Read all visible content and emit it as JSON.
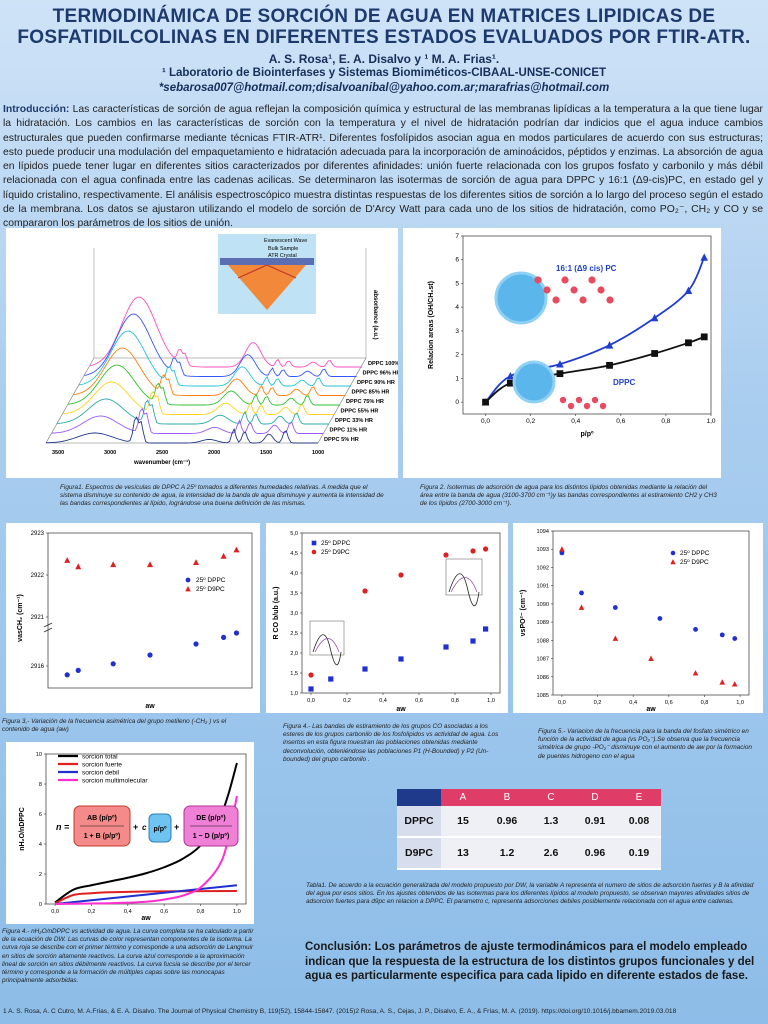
{
  "header": {
    "title_line1": "TERMODINÁMICA DE SORCIÓN DE AGUA EN MATRICES LIPIDICAS DE",
    "title_line2": "FOSFATIDILCOLINAS EN DIFERENTES ESTADOS EVALUADOS POR FTIR-ATR.",
    "authors": "A. S. Rosa¹, E. A. Disalvo y ¹ M. A. Frias¹.",
    "lab": "¹ Laboratorio de Biointerfases y Sistemas Biomiméticos-CIBAAL-UNSE-CONICET",
    "emails": "*sebarosa007@hotmail.com;disalvoanibal@yahoo.com.ar;marafrias@hotmail.com"
  },
  "intro": {
    "label": "Introducción:",
    "text": "Las características de sorción de agua reflejan la composición química y estructural de las membranas lipídicas a la temperatura a la que tiene lugar la hidratación. Los cambios en las características de sorción con la temperatura y el nivel de hidratación podrían dar indicios que el agua induce cambios estructurales que pueden confirmarse mediante técnicas FTIR-ATR¹. Diferentes fosfolípidos asocian agua en modos particulares de acuerdo con sus estructuras; esto puede producir una modulación del empaquetamiento e hidratación adecuada para la incorporación de aminoácidos, péptidos y enzimas. La absorción de agua en lípidos puede tener lugar en diferentes sitios caracterizados por diferentes afinidades: unión fuerte relacionada con los grupos fosfato y carbonilo y más débil relacionada con el agua confinada entre las cadenas acilicas. Se determinaron las isotermas de sorción de agua para DPPC y 16:1 (Δ9-cis)PC, en estado gel y líquido cristalino, respectivamente. El análisis espectroscópico muestra distintas respuestas de los diferentes sitios de sorción a lo largo del proceso según el estado de la membrana. Los datos se ajustaron utilizando el modelo de sorción de D'Arcy Watt para cada uno de los sitios de hidratación, como PO₂⁻, CH₂ y CO y se compararon los parámetros de los sitios de unión."
  },
  "figure1": {
    "inset_labels": [
      "Evanescent Wave",
      "Bulk Sample",
      "ATR Crystal"
    ],
    "ylabel": "absorbance (a.u.)",
    "xlabel": "wavenumber (cm⁻¹)",
    "x_ticks": [
      "3500",
      "3000",
      "2500",
      "2000",
      "1500",
      "1000"
    ],
    "spectra_labels": [
      "DPPC 100% HR",
      "DPPC 96% HR",
      "DPPC 90% HR",
      "DPPC 85% HR",
      "DPPC 75% HR",
      "DPPC 55% HR",
      "DPPC 33% HR",
      "DPPC 11% HR",
      "DPPC 5% HR"
    ],
    "caption": "Figura1. Espectros de vesículas de DPPC A 25º tomados a diferentes humedades relativas. A medida que el sistema disminuye su contenido de agua, la intensidad de la banda de agua disminuye y aumenta la intensidad de las bandas correspondientes al lípido, lográndose una buena definición de las mismas.",
    "colors": [
      "#ff4fbf",
      "#3355ff",
      "#22c3d6",
      "#ff7f0e",
      "#30c030",
      "#ffd21f",
      "#2aa8a8",
      "#9b59ff",
      "#1f3a8a"
    ]
  },
  "chart_data": [
    {
      "id": "figure2",
      "type": "line",
      "xlabel": "p/pº",
      "ylabel": "Relacion areas (OH/CH₂st)",
      "xlim": [
        -0.1,
        1.0
      ],
      "ylim": [
        -0.5,
        7
      ],
      "x_ticks": [
        "0,0",
        "0,2",
        "0,4",
        "0,6",
        "0,8",
        "1,0"
      ],
      "y_ticks": [
        "0",
        "1",
        "2",
        "3",
        "4",
        "5",
        "6",
        "7"
      ],
      "series": [
        {
          "name": "16:1 (Δ9 cis) PC",
          "color": "#1f3ecf",
          "marker": "triangle",
          "x": [
            0.0,
            0.11,
            0.33,
            0.55,
            0.75,
            0.9,
            0.97
          ],
          "y": [
            0.0,
            1.1,
            1.6,
            2.4,
            3.55,
            4.7,
            6.1
          ]
        },
        {
          "name": "DPPC",
          "color": "#111111",
          "marker": "square",
          "x": [
            0.0,
            0.11,
            0.33,
            0.55,
            0.75,
            0.9,
            0.97
          ],
          "y": [
            0.0,
            0.8,
            1.2,
            1.55,
            2.05,
            2.5,
            2.75
          ]
        }
      ],
      "caption": "Figura 2. Isotermas de adsorción de agua para los distintos lípidos obtenidas mediante la relación del área entre la banda de agua (3100-3700 cm⁻¹)y las bandas correspondientes al estiramiento CH2 y CH3 de los lípidos (2700-3000 cm⁻¹)."
    },
    {
      "id": "figure3",
      "type": "scatter",
      "xlabel": "aw",
      "ylabel": "νasCH₂ (cm⁻¹)",
      "y_ticks": [
        "2923",
        "2922",
        "2921",
        "2916"
      ],
      "series": [
        {
          "name": "25º DPPC",
          "color": "#1f2fd0",
          "marker": "circle",
          "x": [
            0.05,
            0.11,
            0.3,
            0.5,
            0.75,
            0.9,
            0.97
          ],
          "y": [
            2915.6,
            2915.8,
            2916.1,
            2916.5,
            2917.0,
            2917.3,
            2917.5
          ]
        },
        {
          "name": "25º D9PC",
          "color": "#e02020",
          "marker": "triangle",
          "x": [
            0.05,
            0.11,
            0.3,
            0.5,
            0.75,
            0.9,
            0.97
          ],
          "y": [
            2922.35,
            2922.2,
            2922.25,
            2922.25,
            2922.3,
            2922.45,
            2922.6
          ]
        }
      ],
      "caption": "Figura 3,- Variación de la frecuencia asimétrica del grupo metileno (-CH₂ ) vs el contenido de agua (aw)"
    },
    {
      "id": "figure4",
      "type": "scatter",
      "xlabel": "aw",
      "ylabel": "R CO b/ub (a.u.)",
      "ylim": [
        1.0,
        5.0
      ],
      "y_ticks": [
        "5,0",
        "4,5",
        "4,0",
        "3,5",
        "3,0",
        "2,5",
        "2,0",
        "1,5",
        "1,0"
      ],
      "x_ticks": [
        "0,0",
        "0,2",
        "0,4",
        "0,6",
        "0,8",
        "1,0"
      ],
      "series": [
        {
          "name": "25º DPPC",
          "color": "#1f2fd0",
          "marker": "square",
          "x": [
            0.0,
            0.11,
            0.3,
            0.5,
            0.75,
            0.9,
            0.97
          ],
          "y": [
            1.1,
            1.35,
            1.6,
            1.85,
            2.15,
            2.3,
            2.6
          ]
        },
        {
          "name": "25º D9PC",
          "color": "#e02020",
          "marker": "circle",
          "x": [
            0.0,
            0.11,
            0.3,
            0.5,
            0.75,
            0.9,
            0.97
          ],
          "y": [
            1.45,
            2.6,
            3.55,
            3.95,
            4.45,
            4.55,
            4.6
          ]
        }
      ],
      "caption": "Figura 4.- Las bandas de estiramiento de los grupos CO asociadas a los esteres de los grupos carbonilo de los fosfolipidos vs actividad de agua. Los insertos en esta figura muestran las poblaciones obtenidas mediante deconvolución, obteniéndose las poblaciones P1 (H-Bounded) y P2 (Un-bounded) del grupo carbonilo ."
    },
    {
      "id": "figure5",
      "type": "scatter",
      "xlabel": "aw",
      "ylabel": "νsPO²⁻ (cm⁻¹)",
      "ylim": [
        1085,
        1094
      ],
      "y_ticks": [
        "1094",
        "1093",
        "1092",
        "1091",
        "1090",
        "1089",
        "1088",
        "1087",
        "1086",
        "1085"
      ],
      "x_ticks": [
        "0,0",
        "0,2",
        "0,4",
        "0,6",
        "0,8",
        "1,0"
      ],
      "series": [
        {
          "name": "25º DPPC",
          "color": "#1f2fd0",
          "marker": "circle",
          "x": [
            0.0,
            0.11,
            0.3,
            0.55,
            0.75,
            0.9,
            0.97
          ],
          "y": [
            1092.8,
            1090.6,
            1089.8,
            1089.2,
            1088.6,
            1088.3,
            1088.1
          ]
        },
        {
          "name": "25º D9PC",
          "color": "#e02020",
          "marker": "triangle",
          "x": [
            0.0,
            0.11,
            0.3,
            0.5,
            0.75,
            0.9,
            0.97
          ],
          "y": [
            1093.0,
            1089.8,
            1088.1,
            1087.0,
            1086.2,
            1085.7,
            1085.6
          ]
        }
      ],
      "caption": "Figura 5.- Variacion de la frecuencia para la banda del fosfato simétrico en función de la actividad de agua (vs PO₂⁻).Se observa que la frecuencia simétrica de grupo -PO₂⁻ disminuye con el aumento de aw por la formacion de puentes hidrogeno con el agua"
    },
    {
      "id": "figure6",
      "type": "line",
      "xlabel": "aw",
      "ylabel": "nH₂O/nDPPC",
      "xlim": [
        0.0,
        1.0
      ],
      "ylim": [
        0,
        10
      ],
      "x_ticks": [
        "0,0",
        "0,2",
        "0,4",
        "0,6",
        "0,8",
        "1,0"
      ],
      "y_ticks": [
        "10",
        "8",
        "6",
        "4",
        "2",
        "0"
      ],
      "series": [
        {
          "name": "sorcion total",
          "color": "#000000",
          "x": [
            0.0,
            0.1,
            0.2,
            0.3,
            0.4,
            0.5,
            0.6,
            0.7,
            0.8,
            0.9,
            0.95,
            1.0
          ],
          "y": [
            0.1,
            0.95,
            1.25,
            1.5,
            1.75,
            2.05,
            2.45,
            3.0,
            3.9,
            5.6,
            7.2,
            9.4
          ]
        },
        {
          "name": "sorcion fuerte",
          "color": "#e02020",
          "x": [
            0.0,
            0.1,
            0.2,
            0.3,
            0.5,
            0.7,
            1.0
          ],
          "y": [
            0.05,
            0.6,
            0.72,
            0.78,
            0.83,
            0.85,
            0.87
          ]
        },
        {
          "name": "sorcion debil",
          "color": "#1f2fd0",
          "x": [
            0.0,
            0.2,
            0.4,
            0.6,
            0.8,
            1.0
          ],
          "y": [
            0.0,
            0.25,
            0.5,
            0.75,
            1.0,
            1.25
          ]
        },
        {
          "name": "sorcion multimolecular",
          "color": "#ff2fd0",
          "x": [
            0.0,
            0.3,
            0.5,
            0.6,
            0.7,
            0.8,
            0.9,
            0.95,
            1.0
          ],
          "y": [
            0.0,
            0.05,
            0.15,
            0.3,
            0.55,
            1.1,
            2.5,
            4.2,
            7.2
          ]
        }
      ],
      "caption": "Figura 4.- nH₂O/nDPPC vs actividad de agua. La curva completa se ha calculado a partir de la ecuación de DW. Las curvas de color representan componentes de la isoterma. La curva roja se describe con el primer término y corresponde a una adsorción de Langmuir en sitios de sorción altamente reactivos. La curva azul corresponde a la aproximación lineal de sorción en sitios débilmente reactivos. La curva fucsia se describe por el tercer término y corresponde a la formación de múltiples capas sobre las monocapas principalmente adsorbidas."
    }
  ],
  "table1": {
    "headers": [
      "A",
      "B",
      "C",
      "D",
      "E"
    ],
    "rows": [
      {
        "label": "DPPC",
        "values": [
          "15",
          "0.96",
          "1.3",
          "0.91",
          "0.08"
        ]
      },
      {
        "label": "D9PC",
        "values": [
          "13",
          "1.2",
          "2.6",
          "0.96",
          "0.19"
        ]
      }
    ],
    "caption": "Tabla1. De acuerdo a la ecuación generalizada del modelo propuesto por DW, la variable A representa el numero de sitios de adsorción fuertes y B la afinidad del agua por esos sitios. En los ajustes obtenidos de las isotermas para los diferentes lípidos al modelo propuesto, se observan mayores afinidades sitios de adsorcion fuertes para d9pc en relacion a DPPC. El parametro c, representa adsorciones debiles posiblemente relacionada con el agua entre cadenas."
  },
  "insets": {
    "fig2_label_a": "16:1 (Δ9 cis) PC",
    "fig2_label_b": "DPPC"
  },
  "conclusion": {
    "label": "Conclusión:",
    "text": "Los parámetros de ajuste termodinámicos para el modelo empleado indican que la respuesta de la estructura de los distintos grupos funcionales y del agua es particularmente especifica para cada lipido en diferente estados de fase."
  },
  "references": "1 A. S. Rosa, A. C Cutro, M. A.Frias, & E. A. Disalvo. The Journal of Physical Chemistry B, 119(52), 15844-15847. (2015)2 Rosa, A. S., Cejas, J. P., Disalvo, E. A., & Frías, M. A. (2019). https://doi.org/10.1016/j.bbamem.2019.03.018"
}
